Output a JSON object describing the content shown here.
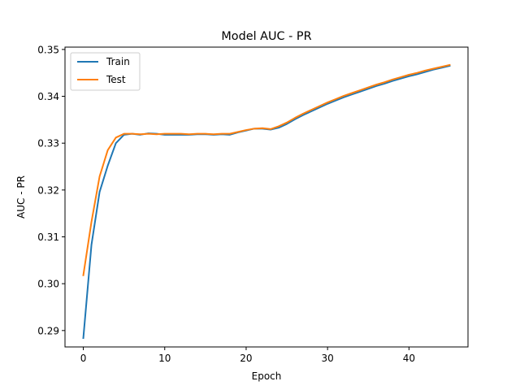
{
  "chart_data": {
    "type": "line",
    "title": "Model AUC - PR",
    "xlabel": "Epoch",
    "ylabel": "AUC - PR",
    "xlim": [
      -2.25,
      47.25
    ],
    "ylim": [
      0.2865,
      0.3505
    ],
    "xticks": [
      0,
      10,
      20,
      30,
      40
    ],
    "yticks": [
      0.29,
      0.3,
      0.31,
      0.32,
      0.33,
      0.34,
      0.35
    ],
    "ytick_labels": [
      "0.29",
      "0.30",
      "0.31",
      "0.32",
      "0.33",
      "0.34",
      "0.35"
    ],
    "grid": false,
    "legend_position": "top-left",
    "x": [
      0,
      1,
      2,
      3,
      4,
      5,
      6,
      7,
      8,
      9,
      10,
      11,
      12,
      13,
      14,
      15,
      16,
      17,
      18,
      19,
      20,
      21,
      22,
      23,
      24,
      25,
      26,
      27,
      28,
      29,
      30,
      31,
      32,
      33,
      34,
      35,
      36,
      37,
      38,
      39,
      40,
      41,
      42,
      43,
      44,
      45
    ],
    "series": [
      {
        "name": "Train",
        "color": "#1f77b4",
        "values": [
          0.2884,
          0.3083,
          0.3196,
          0.3252,
          0.33,
          0.3318,
          0.332,
          0.3318,
          0.3321,
          0.332,
          0.3318,
          0.3318,
          0.3318,
          0.3318,
          0.3319,
          0.3319,
          0.3318,
          0.3319,
          0.3318,
          0.3323,
          0.3327,
          0.3331,
          0.3331,
          0.3329,
          0.3333,
          0.3341,
          0.3351,
          0.336,
          0.3368,
          0.3376,
          0.3384,
          0.3391,
          0.3398,
          0.3404,
          0.341,
          0.3416,
          0.3422,
          0.3427,
          0.3433,
          0.3438,
          0.3443,
          0.3447,
          0.3452,
          0.3457,
          0.3461,
          0.3465
        ]
      },
      {
        "name": "Test",
        "color": "#ff7f0e",
        "values": [
          0.3018,
          0.3132,
          0.3229,
          0.3285,
          0.3312,
          0.332,
          0.332,
          0.3319,
          0.332,
          0.3319,
          0.332,
          0.332,
          0.332,
          0.3319,
          0.332,
          0.332,
          0.3319,
          0.332,
          0.332,
          0.3324,
          0.3328,
          0.3331,
          0.3332,
          0.333,
          0.3336,
          0.3344,
          0.3354,
          0.3363,
          0.3371,
          0.3379,
          0.3387,
          0.3394,
          0.3401,
          0.3407,
          0.3413,
          0.3419,
          0.3425,
          0.343,
          0.3436,
          0.3441,
          0.3446,
          0.345,
          0.3455,
          0.3459,
          0.3463,
          0.3467
        ]
      }
    ]
  }
}
